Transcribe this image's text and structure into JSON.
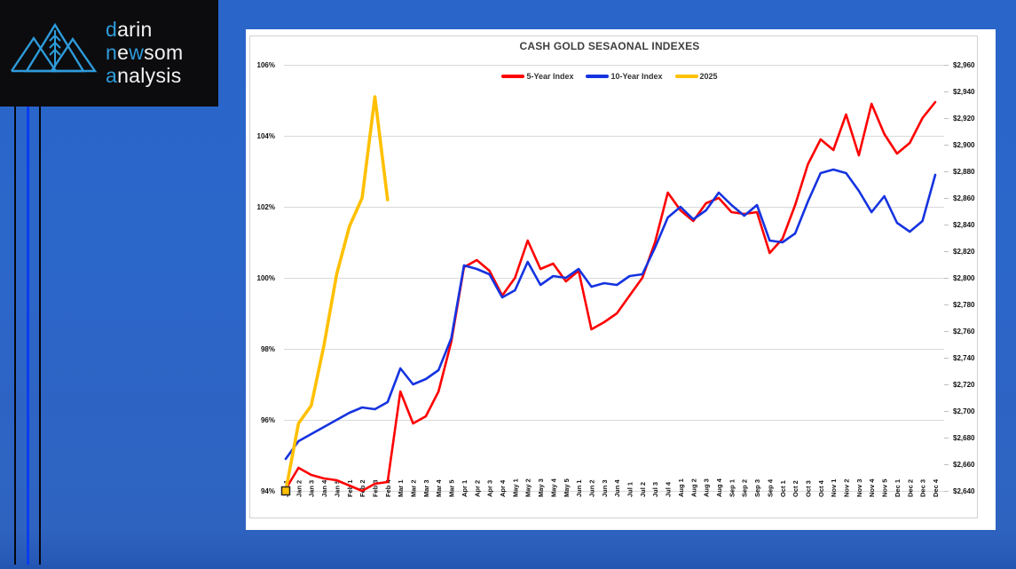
{
  "logo": {
    "lines": [
      [
        {
          "t": "d",
          "blue": true
        },
        {
          "t": "arin",
          "blue": false
        }
      ],
      [
        {
          "t": "n",
          "blue": true
        },
        {
          "t": "e",
          "blue": false
        },
        {
          "t": "w",
          "blue": true
        },
        {
          "t": "som",
          "blue": false
        }
      ],
      [
        {
          "t": "a",
          "blue": true
        },
        {
          "t": "nalysis",
          "blue": false
        }
      ]
    ],
    "accent_color": "#2e9bdb"
  },
  "chart_data": {
    "type": "line",
    "title": "CASH GOLD SESAONAL INDEXES",
    "left_axis": {
      "min": 94,
      "max": 106,
      "step": 2,
      "format": "percent"
    },
    "right_axis": {
      "min": 2640,
      "max": 2960,
      "step": 20,
      "format": "dollars"
    },
    "left_axis_labels": [
      "106%",
      "104%",
      "102%",
      "100%",
      "98%",
      "96%",
      "94%"
    ],
    "right_axis_labels": [
      "$2,960",
      "$2,940",
      "$2,920",
      "$2,900",
      "$2,880",
      "$2,860",
      "$2,840",
      "$2,820",
      "$2,800",
      "$2,780",
      "$2,760",
      "$2,740",
      "$2,720",
      "$2,700",
      "$2,680",
      "$2,660",
      "$2,640"
    ],
    "grid": true,
    "legend_position": "top-center",
    "x_labels": [
      "Jan 1",
      "Jan 2",
      "Jan 3",
      "Jan 4",
      "Jan 5",
      "Feb 1",
      "Feb 2",
      "Feb 3",
      "Feb 4",
      "Mar 1",
      "Mar 2",
      "Mar 3",
      "Mar 4",
      "Mar 5",
      "Apr 1",
      "Apr 2",
      "Apr 3",
      "Apr 4",
      "May 1",
      "May 2",
      "May 3",
      "May 4",
      "May 5",
      "Jun 1",
      "Jun 2",
      "Jun 3",
      "Jun 4",
      "Jul 1",
      "Jul 2",
      "Jul 3",
      "Jul 4",
      "Aug 1",
      "Aug 2",
      "Aug 3",
      "Aug 4",
      "Sep 1",
      "Sep 2",
      "Sep 3",
      "Sep 4",
      "Oct 1",
      "Oct 2",
      "Oct 3",
      "Oct 4",
      "Nov 1",
      "Nov 2",
      "Nov 3",
      "Nov 4",
      "Nov 5",
      "Dec 1",
      "Dec 2",
      "Dec 3",
      "Dec 4"
    ],
    "series": [
      {
        "name": "5-Year Index",
        "color": "#ff0000",
        "width": 2.6,
        "values": [
          94.05,
          94.65,
          94.45,
          94.35,
          94.3,
          94.15,
          94.0,
          94.2,
          94.25,
          96.8,
          95.9,
          96.1,
          96.8,
          98.2,
          100.3,
          100.5,
          100.2,
          99.5,
          100.0,
          101.05,
          100.25,
          100.4,
          99.9,
          100.2,
          98.55,
          98.75,
          99.0,
          99.5,
          100.0,
          101.0,
          102.4,
          101.9,
          101.6,
          102.1,
          102.25,
          101.85,
          101.8,
          101.85,
          100.7,
          101.1,
          102.05,
          103.2,
          103.9,
          103.6,
          104.6,
          103.45,
          104.9,
          104.05,
          103.5,
          103.8,
          104.5,
          104.95
        ]
      },
      {
        "name": "10-Year Index",
        "color": "#1533e0",
        "width": 2.6,
        "values": [
          94.9,
          95.4,
          95.6,
          95.8,
          96.0,
          96.2,
          96.35,
          96.3,
          96.5,
          97.45,
          97.0,
          97.15,
          97.4,
          98.3,
          100.35,
          100.25,
          100.1,
          99.45,
          99.65,
          100.45,
          99.8,
          100.05,
          100.0,
          100.25,
          99.75,
          99.85,
          99.8,
          100.05,
          100.1,
          100.85,
          101.7,
          102.0,
          101.65,
          101.9,
          102.4,
          102.05,
          101.75,
          102.05,
          101.05,
          101.0,
          101.25,
          102.15,
          102.95,
          103.05,
          102.95,
          102.45,
          101.85,
          102.3,
          101.55,
          101.3,
          101.6,
          102.9
        ]
      },
      {
        "name": "2025",
        "color": "#ffc000",
        "width": 3.6,
        "start_marker": true,
        "values": [
          94.0,
          95.9,
          96.4,
          98.1,
          100.1,
          101.45,
          102.25,
          105.1,
          102.2,
          null,
          null,
          null,
          null,
          null,
          null,
          null,
          null,
          null,
          null,
          null,
          null,
          null,
          null,
          null,
          null,
          null,
          null,
          null,
          null,
          null,
          null,
          null,
          null,
          null,
          null,
          null,
          null,
          null,
          null,
          null,
          null,
          null,
          null,
          null,
          null,
          null,
          null,
          null,
          null,
          null,
          null,
          null
        ]
      }
    ]
  },
  "colors": {
    "grid": "#d9d9d9",
    "frame": "#d2d2d2",
    "marker_fill": "#ffc000",
    "marker_border": "#262626"
  }
}
